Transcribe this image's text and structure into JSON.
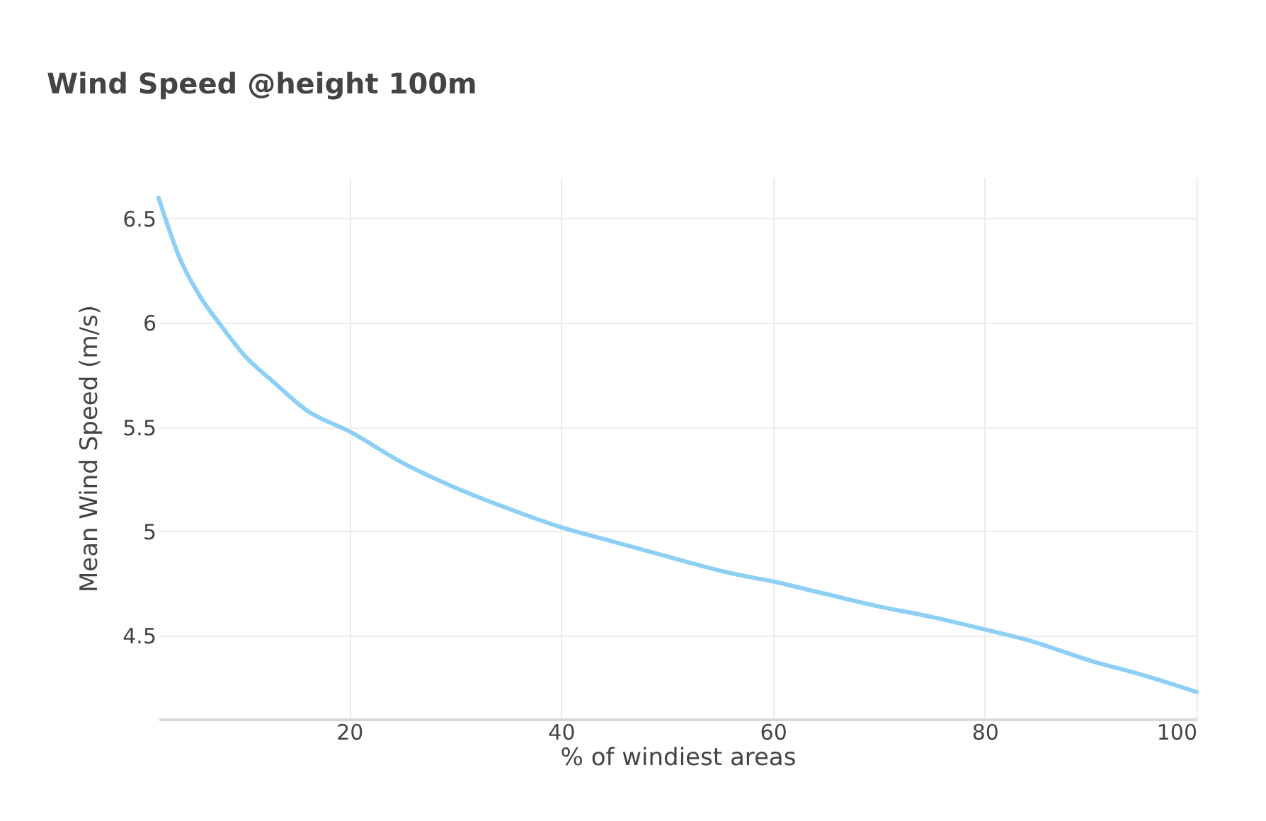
{
  "chart_data": {
    "type": "line",
    "title": "Wind Speed @height 100m",
    "xlabel": "% of windiest areas",
    "ylabel": "Mean Wind Speed (m/s)",
    "x": [
      2,
      4,
      6,
      8,
      10,
      13,
      16,
      20,
      25,
      30,
      35,
      40,
      45,
      50,
      56,
      60,
      65,
      70,
      75,
      80,
      84,
      90,
      95,
      100
    ],
    "series": [
      {
        "color": "#8ecff5",
        "values": [
          6.6,
          6.31,
          6.12,
          5.98,
          5.85,
          5.71,
          5.58,
          5.48,
          5.33,
          5.21,
          5.11,
          5.02,
          4.95,
          4.88,
          4.8,
          4.76,
          4.7,
          4.64,
          4.59,
          4.53,
          4.48,
          4.38,
          4.31,
          4.23
        ]
      }
    ],
    "xlim": [
      2,
      100
    ],
    "xticks": [
      20,
      40,
      60,
      80,
      100
    ],
    "ylim": [
      4.1,
      6.7
    ],
    "yticks": [
      4.5,
      5,
      5.5,
      6,
      6.5
    ],
    "grid": true,
    "legend": false,
    "marker": "none",
    "line_style": "solid"
  }
}
